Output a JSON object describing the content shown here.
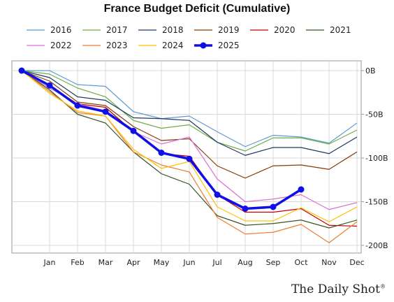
{
  "chart_data": {
    "type": "line",
    "title": "France Budget Deficit (Cumulative)",
    "x": [
      "",
      "Jan",
      "Feb",
      "Mar",
      "Apr",
      "May",
      "Jun",
      "Jul",
      "Aug",
      "Sep",
      "Oct",
      "Nov",
      "Dec"
    ],
    "ylim": [
      -200,
      0
    ],
    "yticks": [
      {
        "value": 0,
        "label": "0B"
      },
      {
        "value": -50,
        "label": "-50B"
      },
      {
        "value": -100,
        "label": "-100B"
      },
      {
        "value": -150,
        "label": "-150B"
      },
      {
        "value": -200,
        "label": "-200B"
      }
    ],
    "grid": true,
    "legend_position": "top",
    "series": [
      {
        "name": "2016",
        "color": "#5b9bd5",
        "width": 1.2,
        "values": [
          0,
          0,
          -16,
          -18,
          -47,
          -55,
          -52,
          -70,
          -87,
          -74,
          -76,
          -83,
          -60
        ]
      },
      {
        "name": "2017",
        "color": "#70ad47",
        "width": 1.2,
        "values": [
          0,
          -4,
          -20,
          -30,
          -57,
          -66,
          -62,
          -82,
          -92,
          -77,
          -77,
          -84,
          -68
        ]
      },
      {
        "name": "2018",
        "color": "#1f3864",
        "width": 1.2,
        "values": [
          0,
          -8,
          -30,
          -34,
          -54,
          -55,
          -57,
          -82,
          -97,
          -88,
          -88,
          -95,
          -76
        ]
      },
      {
        "name": "2019",
        "color": "#843c0c",
        "width": 1.2,
        "values": [
          0,
          -12,
          -36,
          -40,
          -64,
          -80,
          -78,
          -109,
          -123,
          -109,
          -108,
          -113,
          -93
        ]
      },
      {
        "name": "2020",
        "color": "#c00000",
        "width": 1.2,
        "values": [
          0,
          -18,
          -38,
          -42,
          -70,
          -95,
          -98,
          -142,
          -162,
          -162,
          -158,
          -177,
          -178
        ]
      },
      {
        "name": "2021",
        "color": "#375623",
        "width": 1.2,
        "values": [
          0,
          -22,
          -50,
          -60,
          -93,
          -118,
          -130,
          -166,
          -177,
          -175,
          -171,
          -180,
          -171
        ]
      },
      {
        "name": "2022",
        "color": "#da70d6",
        "width": 1.2,
        "values": [
          0,
          -20,
          -38,
          -46,
          -70,
          -84,
          -76,
          -124,
          -150,
          -147,
          -142,
          -159,
          -151
        ]
      },
      {
        "name": "2023",
        "color": "#ed7d31",
        "width": 1.2,
        "values": [
          0,
          -24,
          -48,
          -52,
          -93,
          -108,
          -116,
          -168,
          -187,
          -185,
          -176,
          -197,
          -173
        ]
      },
      {
        "name": "2024",
        "color": "#ffc000",
        "width": 1.2,
        "values": [
          0,
          -26,
          -46,
          -52,
          -90,
          -112,
          -104,
          -156,
          -172,
          -172,
          -157,
          -173,
          -156
        ]
      },
      {
        "name": "2025",
        "color": "#1010e6",
        "width": 3.5,
        "markers": true,
        "values": [
          0,
          -17,
          -40,
          -47,
          -69,
          -94,
          -101,
          -142,
          -158,
          -156,
          -136,
          null,
          null
        ]
      }
    ]
  },
  "branding": {
    "name": "The Daily Shot",
    "mark": "®"
  }
}
